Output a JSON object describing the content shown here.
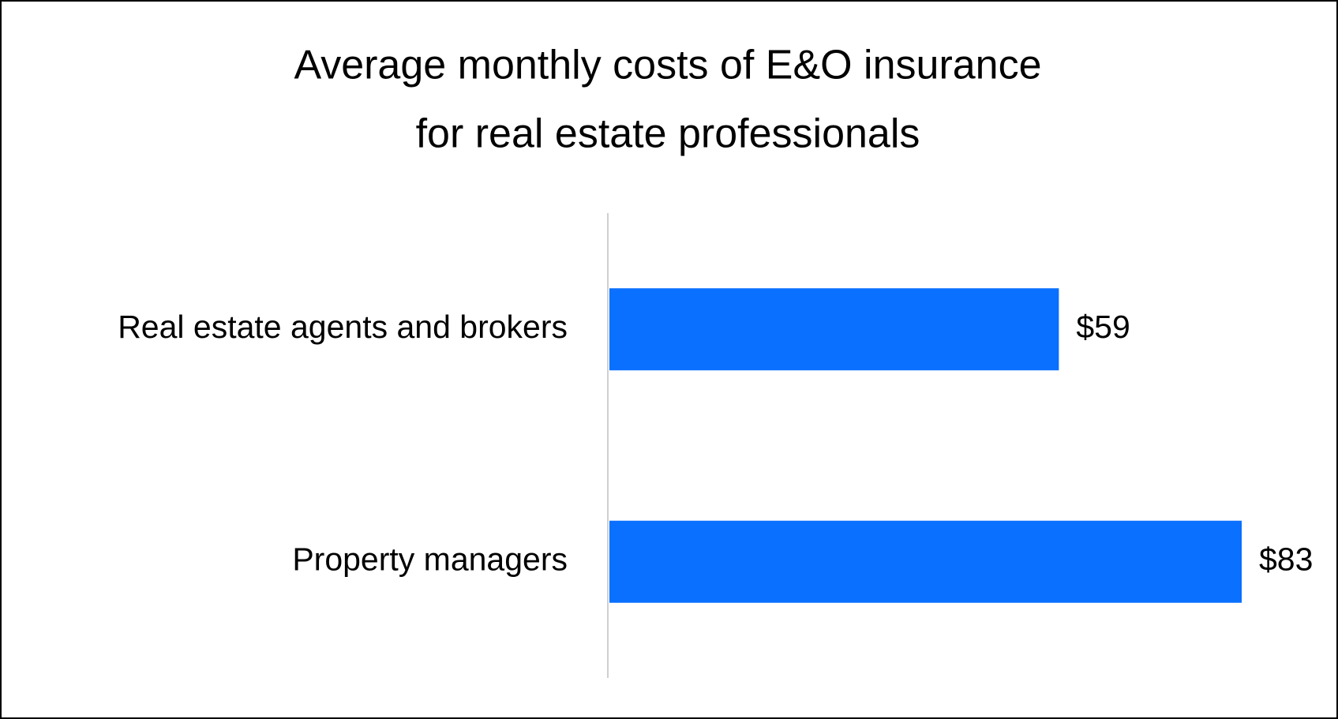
{
  "chart_data": {
    "type": "hbar",
    "title": [
      "Average monthly costs of E&O insurance",
      "for real estate professionals"
    ],
    "categories": [
      "Real estate agents and brokers",
      "Property managers"
    ],
    "values": [
      59,
      83
    ],
    "value_labels": [
      "$59",
      "$83"
    ],
    "color": "#0a70ff"
  }
}
